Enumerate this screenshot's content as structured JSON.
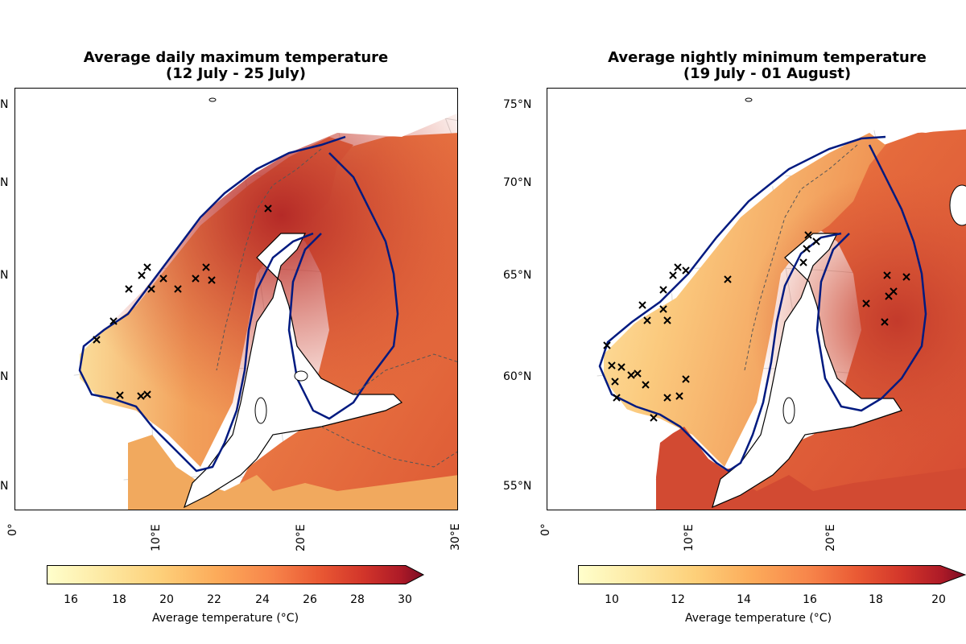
{
  "figure": {
    "colormap": [
      "#ffffcc",
      "#fde9a3",
      "#fdd07a",
      "#fcab5a",
      "#f7844a",
      "#ea5a34",
      "#d2352a",
      "#ad1a27",
      "#7a0c24"
    ]
  },
  "panels": [
    {
      "id": "max",
      "title_line1": "Average daily maximum temperature",
      "title_line2": "(12 July - 25 July)",
      "lat_labels": [
        "N",
        "N",
        "N",
        "N",
        "N"
      ],
      "lon_labels": [
        "0°",
        "10°E",
        "20°E",
        "30°E"
      ],
      "colorbar": {
        "min": 15,
        "max": 30,
        "ticks": [
          "16",
          "18",
          "20",
          "22",
          "24",
          "26",
          "28",
          "30"
        ],
        "label": "Average temperature (°C)",
        "extend": "max"
      }
    },
    {
      "id": "min",
      "title_line1": "Average nightly minimum temperature",
      "title_line2": "(19 July - 01 August)",
      "lat_labels": [
        "75°N",
        "70°N",
        "65°N",
        "60°N",
        "55°N"
      ],
      "lon_labels": [
        "0°",
        "10°E",
        "20°E"
      ],
      "colorbar": {
        "min": 9,
        "max": 20,
        "ticks": [
          "10",
          "12",
          "14",
          "16",
          "18",
          "20"
        ],
        "label": "Average temperature (°C)",
        "extend": "max"
      }
    }
  ]
}
